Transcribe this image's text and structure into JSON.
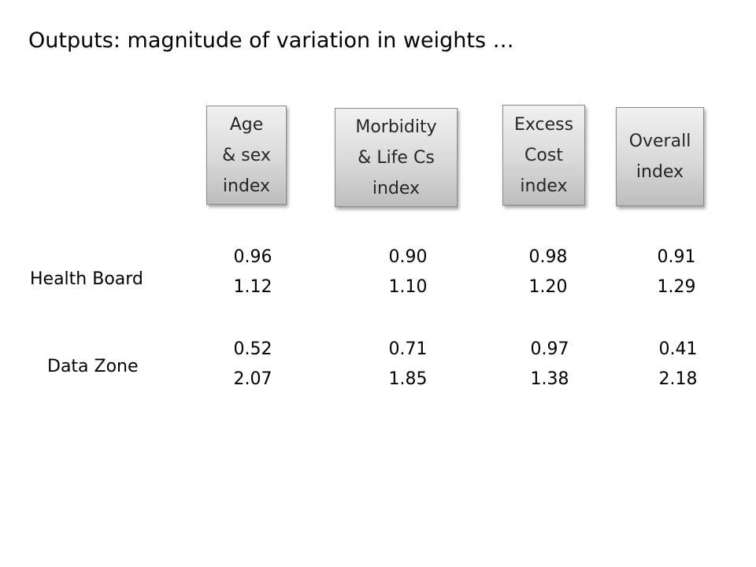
{
  "slide": {
    "title": "Outputs: magnitude of variation in weights …"
  },
  "columns": [
    {
      "label": "Age\n& sex\nindex"
    },
    {
      "label": "Morbidity\n& Life Cs\nindex"
    },
    {
      "label": "Excess\nCost\nindex"
    },
    {
      "label": "Overall\nindex"
    }
  ],
  "rows": [
    {
      "label": "Health Board",
      "values": [
        "0.96\n1.12",
        "0.90\n1.10",
        "0.98\n1.20",
        "0.91\n1.29"
      ]
    },
    {
      "label": "Data Zone",
      "values": [
        "0.52\n2.07",
        "0.71\n1.85",
        "0.97\n1.38",
        "0.41\n2.18"
      ]
    }
  ]
}
